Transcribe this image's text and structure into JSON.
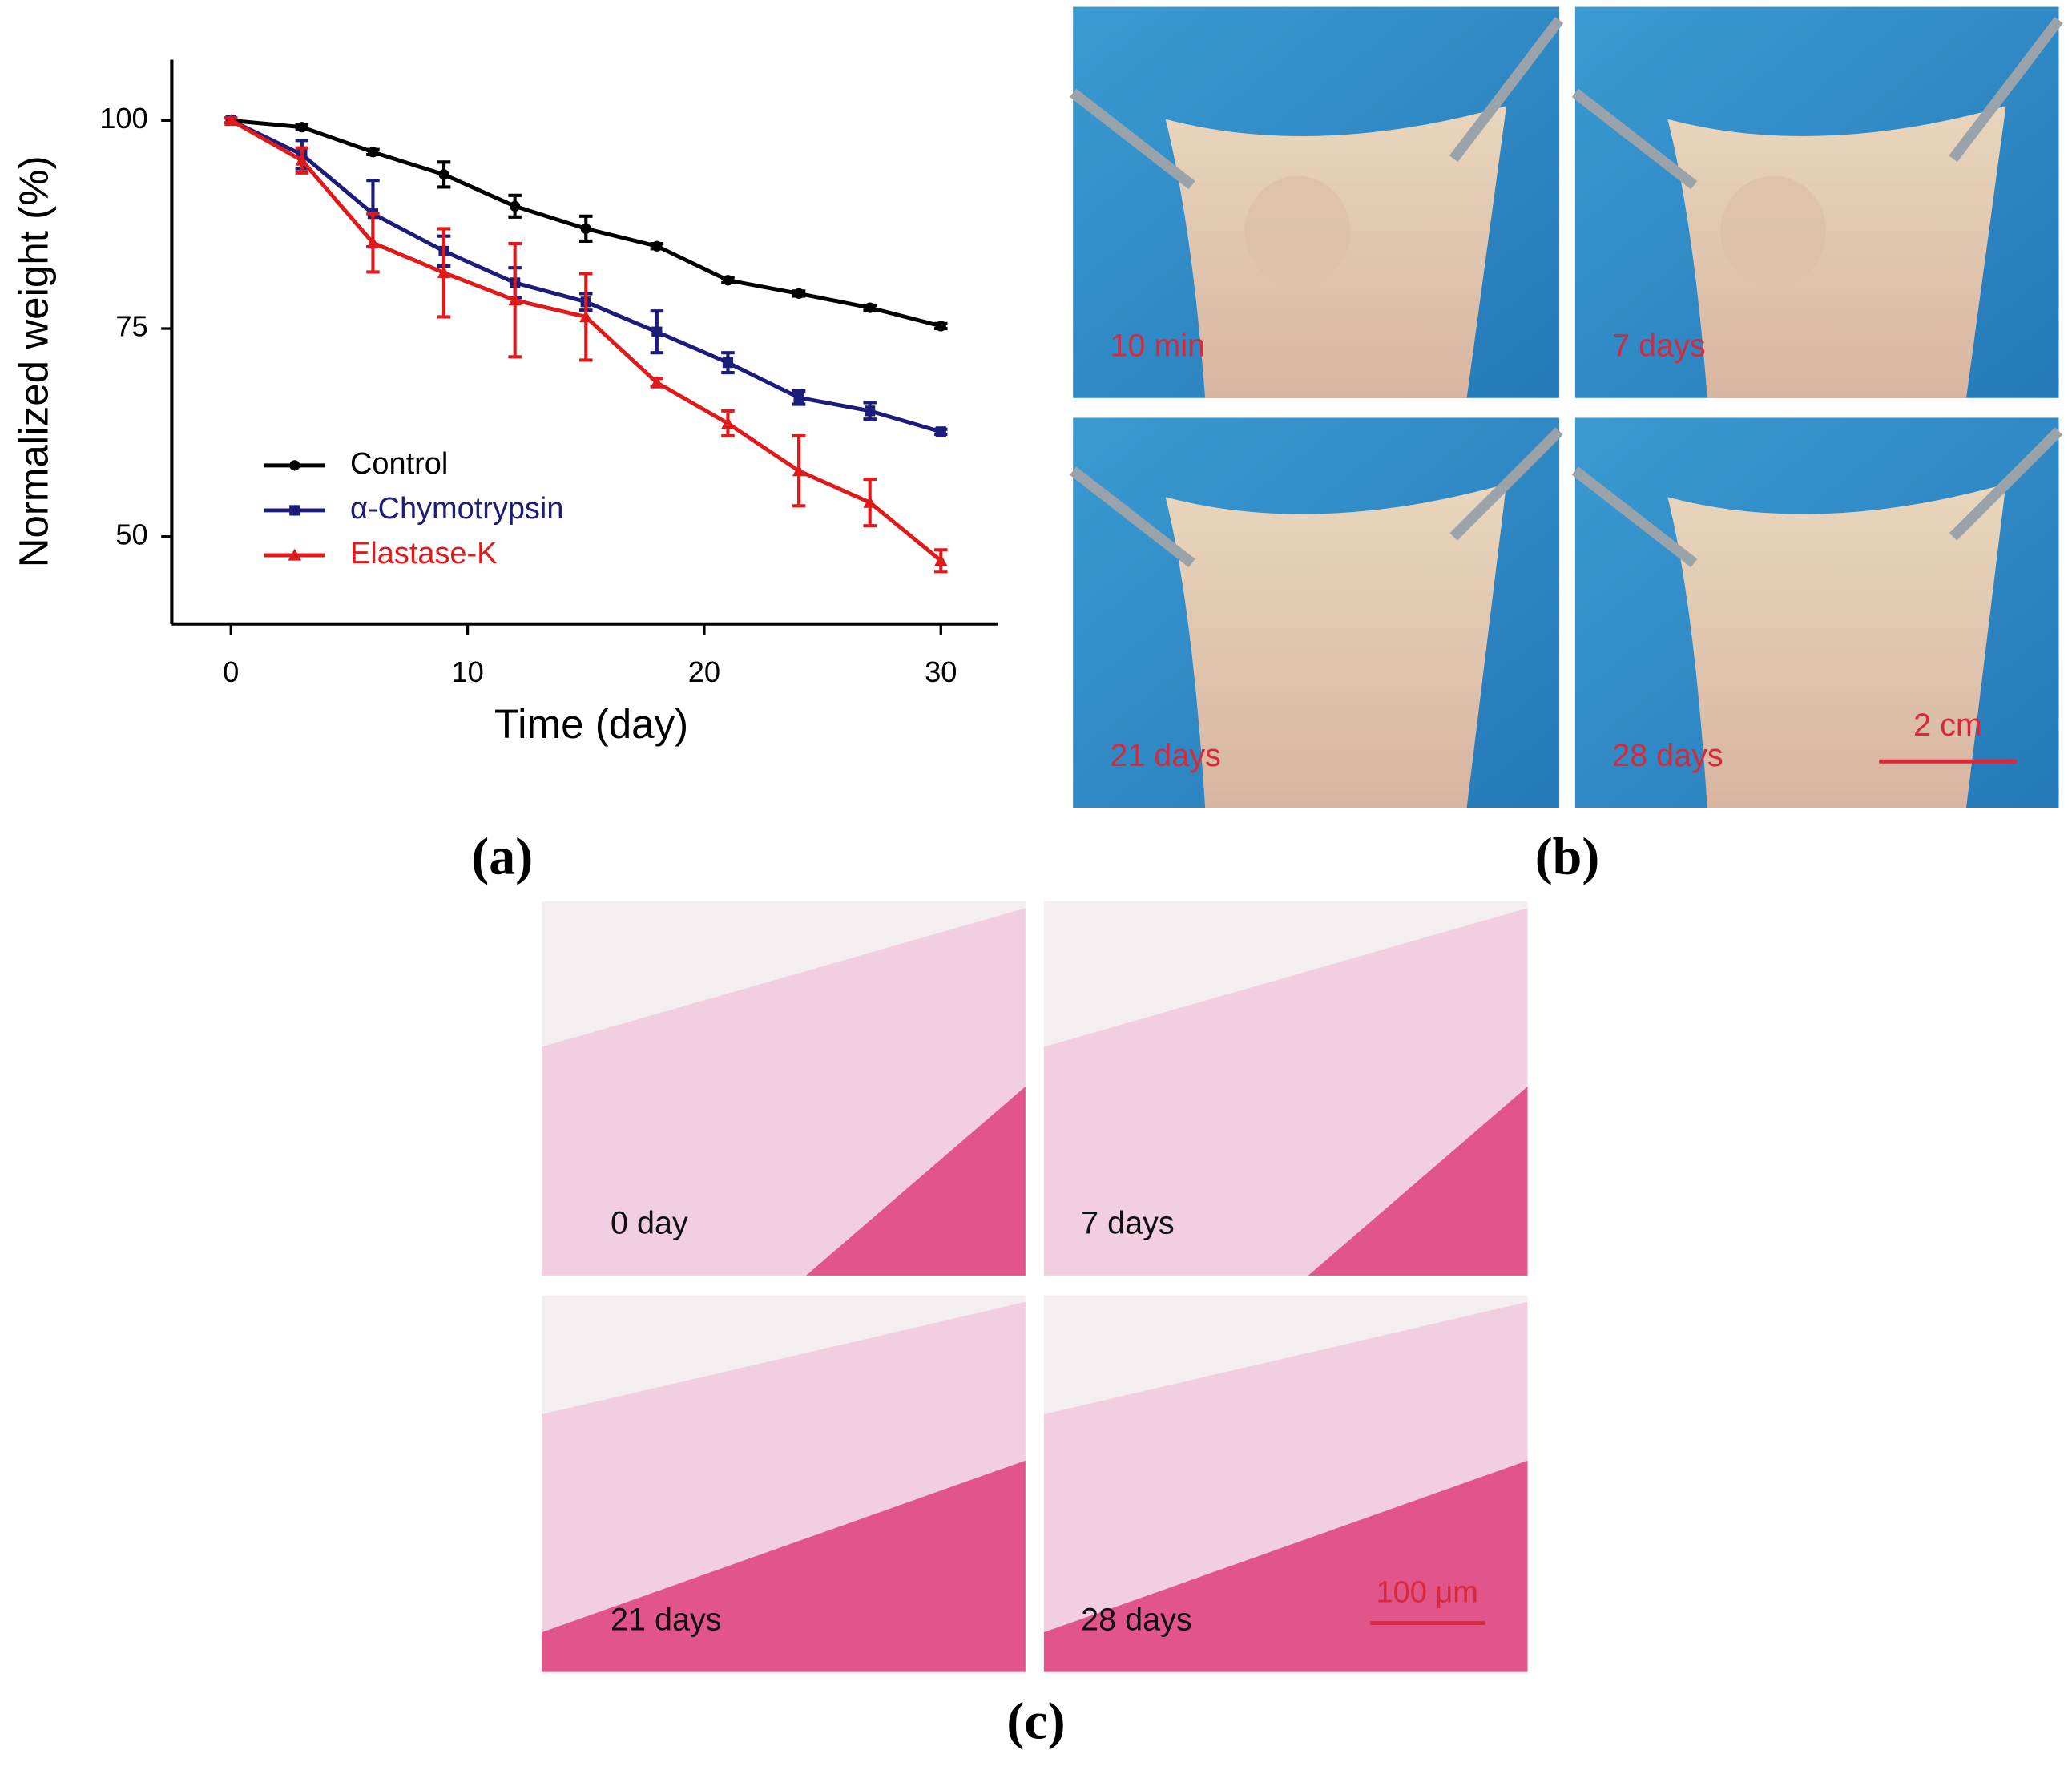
{
  "chart_data": {
    "type": "line",
    "xlabel": "Time (day)",
    "ylabel": "Normalized weight (%)",
    "x": [
      0,
      3,
      6,
      9,
      12,
      15,
      18,
      21,
      24,
      27,
      30
    ],
    "series": [
      {
        "name": "Control",
        "color": "#000000",
        "marker": "circle",
        "values": [
          100,
          99.2,
          96.2,
          93.5,
          89.7,
          87.0,
          84.9,
          80.8,
          79.2,
          77.5,
          75.3
        ],
        "errors": [
          0.3,
          0.3,
          0.3,
          1.5,
          1.3,
          1.5,
          0.3,
          0.3,
          0.3,
          0.3,
          0.3
        ]
      },
      {
        "name": "α-Chymotrypsin",
        "color": "#1c1c7a",
        "marker": "square",
        "values": [
          100,
          95.9,
          88.8,
          84.3,
          80.5,
          78.2,
          74.6,
          70.9,
          66.7,
          65.1,
          62.6
        ],
        "errors": [
          0.3,
          1.7,
          4.0,
          1.8,
          1.8,
          1.0,
          2.5,
          1.2,
          0.8,
          1.0,
          0.3
        ]
      },
      {
        "name": "Elastase-K",
        "color": "#e0191b",
        "marker": "triangle",
        "values": [
          100,
          95.2,
          85.3,
          81.7,
          78.4,
          76.4,
          68.5,
          63.6,
          57.9,
          54.1,
          47.1
        ],
        "errors": [
          0.3,
          1.5,
          3.5,
          5.3,
          6.8,
          5.2,
          0.5,
          1.5,
          4.2,
          2.8,
          1.3
        ]
      }
    ],
    "xlim": [
      -2.5,
      32.4
    ],
    "ylim": [
      39.5,
      107.3
    ],
    "xticks": [
      0,
      10,
      20,
      30
    ],
    "yticks": [
      50,
      75,
      100
    ],
    "legend": "lower left",
    "grid": false
  },
  "panel_labels": [
    "(a)",
    "(b)",
    "(c)"
  ],
  "photos": {
    "labels": [
      "10 min",
      "7 days",
      "21 days",
      "28 days"
    ],
    "scale_bar": "2 cm"
  },
  "histology": {
    "labels": [
      "0 day",
      "7 days",
      "21 days",
      "28 days"
    ],
    "scale_bar": "100 μm"
  }
}
